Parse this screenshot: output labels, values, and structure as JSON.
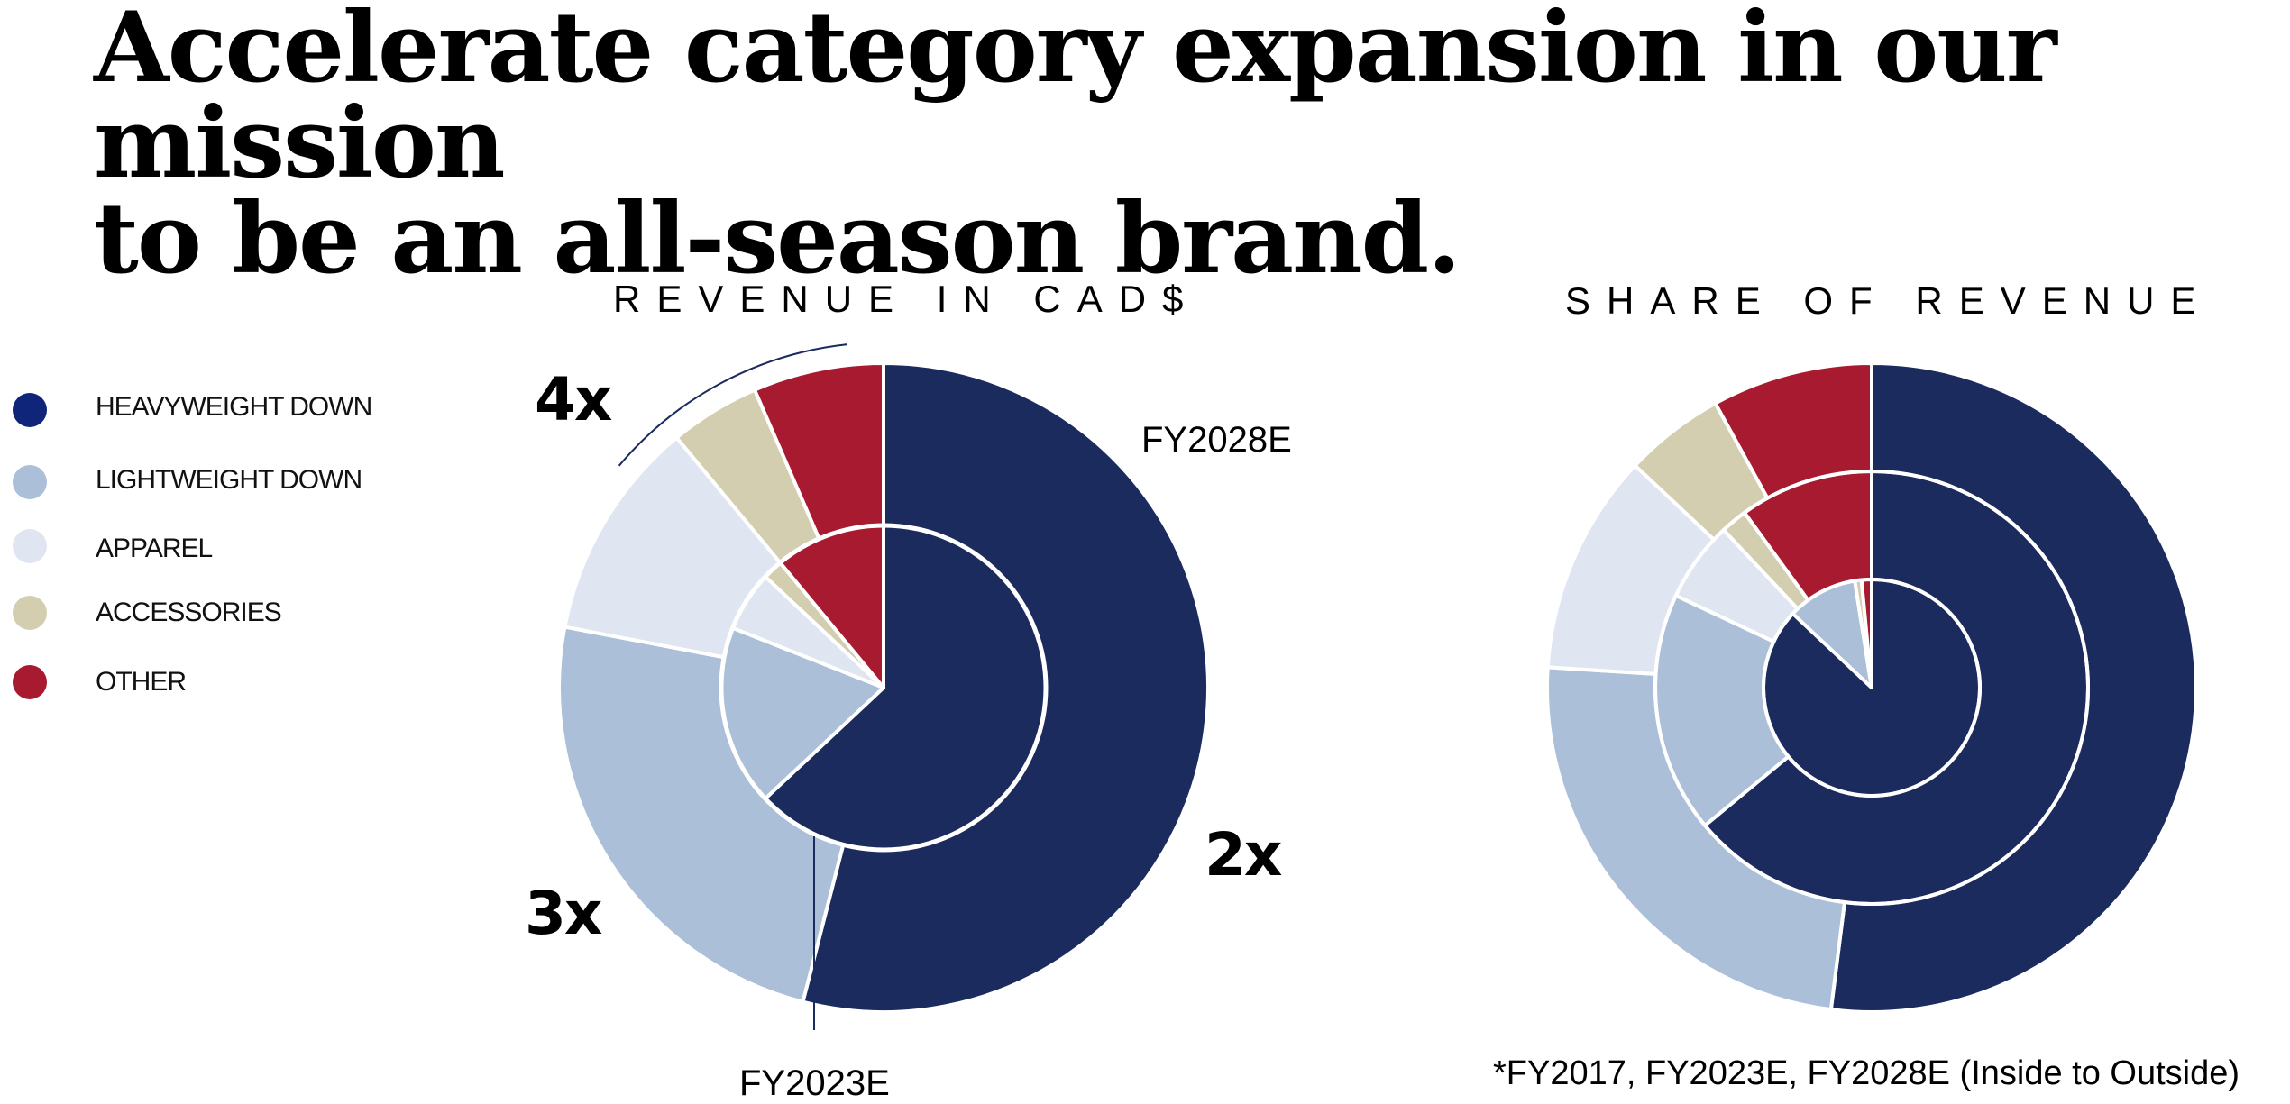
{
  "title": "Accelerate category expansion in our mission\nto be an all-season brand.",
  "colors": {
    "heavyweight_down": "#1c2b5e",
    "lightweight_down": "#abbfd9",
    "apparel": "#dfe6f1",
    "accessories": "#d4ceb0",
    "other": "#a71a2f",
    "legend_heavyweight_down": "#0e2579"
  },
  "legend": [
    {
      "label": "HEAVYWEIGHT DOWN",
      "color_key": "legend_heavyweight_down"
    },
    {
      "label": "LIGHTWEIGHT DOWN",
      "color_key": "lightweight_down"
    },
    {
      "label": "APPAREL",
      "color_key": "apparel"
    },
    {
      "label": "ACCESSORIES",
      "color_key": "accessories"
    },
    {
      "label": "OTHER",
      "color_key": "other"
    }
  ],
  "annotations": {
    "mult_4x": "4x",
    "mult_3x": "3x",
    "mult_2x": "2x",
    "fy2028e": "FY2028E",
    "fy2023e": "FY2023E"
  },
  "footnote": "*FY2017, FY2023E, FY2028E (Inside to Outside)",
  "chart_data": [
    {
      "type": "pie",
      "title": "REVENUE IN CAD$",
      "categories": [
        "HEAVYWEIGHT DOWN",
        "LIGHTWEIGHT DOWN",
        "APPAREL",
        "ACCESSORIES",
        "OTHER"
      ],
      "series": [
        {
          "name": "FY2023E",
          "ring": "inner",
          "values": [
            63,
            18,
            6,
            2,
            11
          ]
        },
        {
          "name": "FY2028E",
          "ring": "outer",
          "values": [
            54,
            24,
            11,
            4.5,
            6.5
          ]
        }
      ]
    },
    {
      "type": "pie",
      "title": "SHARE OF REVENUE",
      "categories": [
        "HEAVYWEIGHT DOWN",
        "LIGHTWEIGHT DOWN",
        "APPAREL",
        "ACCESSORIES",
        "OTHER"
      ],
      "series": [
        {
          "name": "FY2017",
          "ring": "inner",
          "values": [
            87,
            10.5,
            0,
            1,
            1.5
          ]
        },
        {
          "name": "FY2023E",
          "ring": "middle",
          "values": [
            64,
            18,
            6,
            2,
            10
          ]
        },
        {
          "name": "FY2028E",
          "ring": "outer",
          "values": [
            52,
            24,
            11,
            5,
            8
          ]
        }
      ]
    }
  ]
}
